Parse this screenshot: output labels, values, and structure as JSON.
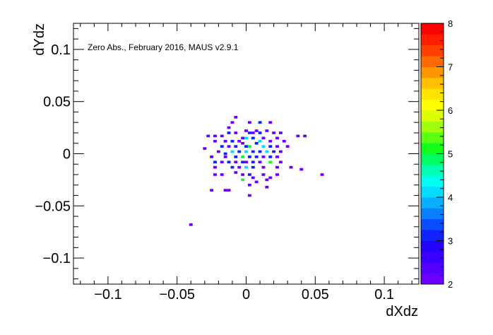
{
  "chart_data": {
    "type": "heatmap",
    "title": "",
    "annotation": "Zero Abs., February 2016, MAUS v2.9.1",
    "xlabel": "dXdz",
    "ylabel": "dYdz",
    "xlim": [
      -0.125,
      0.125
    ],
    "ylim": [
      -0.125,
      0.125
    ],
    "x_ticks": [
      -0.1,
      -0.05,
      0,
      0.05,
      0.1
    ],
    "x_tick_labels": [
      "−0.1",
      "−0.05",
      "0",
      "0.05",
      "0.1"
    ],
    "y_ticks": [
      -0.1,
      -0.05,
      0,
      0.05,
      0.1
    ],
    "y_tick_labels": [
      "−0.1",
      "−0.05",
      "0",
      "0.05",
      "0.1"
    ],
    "colorbar": {
      "min": 2,
      "max": 8,
      "ticks": [
        2,
        3,
        4,
        5,
        6,
        7,
        8
      ],
      "colors": [
        "#6b00ff",
        "#5200ff",
        "#3a00ff",
        "#2400ff",
        "#0f22ff",
        "#0b4cff",
        "#0a80ff",
        "#09b0ff",
        "#06dcff",
        "#00ffee",
        "#00ffb0",
        "#00ff60",
        "#11ff1a",
        "#5aff12",
        "#a0ff10",
        "#dcff08",
        "#ffff00",
        "#ffe400",
        "#ffc000",
        "#ff9500",
        "#ff6a00",
        "#ff4000",
        "#ff1e00",
        "#ff0000"
      ]
    },
    "bin_size": 0.0025,
    "cells": [
      [
        -0.0075,
        0.035,
        2
      ],
      [
        -0.01,
        0.03,
        2
      ],
      [
        -0.0125,
        0.025,
        2
      ],
      [
        0.0025,
        0.03,
        2
      ],
      [
        0.01,
        0.03,
        3
      ],
      [
        0.0175,
        0.03,
        2
      ],
      [
        -0.0275,
        0.017,
        2
      ],
      [
        -0.0225,
        0.017,
        2
      ],
      [
        -0.0175,
        0.017,
        2
      ],
      [
        -0.0125,
        0.02,
        3
      ],
      [
        -0.0075,
        0.02,
        2
      ],
      [
        0.0,
        0.022,
        2
      ],
      [
        0.0025,
        0.02,
        3
      ],
      [
        0.005,
        0.02,
        2
      ],
      [
        0.0075,
        0.022,
        2
      ],
      [
        0.01,
        0.02,
        3
      ],
      [
        0.015,
        0.022,
        2
      ],
      [
        0.02,
        0.02,
        2
      ],
      [
        0.025,
        0.02,
        2
      ],
      [
        0.0375,
        0.017,
        2
      ],
      [
        0.0425,
        0.017,
        2
      ],
      [
        -0.0225,
        0.012,
        2
      ],
      [
        -0.015,
        0.012,
        2
      ],
      [
        -0.01,
        0.012,
        3
      ],
      [
        -0.005,
        0.012,
        2
      ],
      [
        -0.0025,
        0.015,
        2
      ],
      [
        0.0,
        0.015,
        4
      ],
      [
        0.005,
        0.015,
        3
      ],
      [
        0.01,
        0.012,
        4
      ],
      [
        0.0125,
        0.015,
        2
      ],
      [
        0.0175,
        0.012,
        2
      ],
      [
        0.0225,
        0.015,
        2
      ],
      [
        0.0275,
        0.012,
        2
      ],
      [
        -0.0175,
        0.007,
        3
      ],
      [
        -0.0125,
        0.007,
        2
      ],
      [
        -0.0075,
        0.007,
        3
      ],
      [
        -0.0025,
        0.01,
        2
      ],
      [
        0.0,
        0.007,
        3
      ],
      [
        0.0025,
        0.007,
        5
      ],
      [
        0.0075,
        0.01,
        3
      ],
      [
        0.0125,
        0.007,
        4
      ],
      [
        0.0175,
        0.007,
        3
      ],
      [
        0.0225,
        0.007,
        2
      ],
      [
        0.03,
        0.007,
        2
      ],
      [
        -0.03,
        0.005,
        2
      ],
      [
        -0.02,
        0.002,
        2
      ],
      [
        -0.015,
        0.0,
        3
      ],
      [
        -0.01,
        0.002,
        4
      ],
      [
        -0.005,
        0.002,
        3
      ],
      [
        0.0,
        0.002,
        4
      ],
      [
        0.005,
        0.002,
        3
      ],
      [
        0.01,
        0.002,
        3
      ],
      [
        0.015,
        0.002,
        4
      ],
      [
        0.02,
        0.002,
        3
      ],
      [
        0.025,
        0.002,
        2
      ],
      [
        -0.025,
        -0.003,
        2
      ],
      [
        -0.015,
        -0.003,
        2
      ],
      [
        -0.0075,
        -0.003,
        3
      ],
      [
        -0.0025,
        -0.003,
        5
      ],
      [
        0.0025,
        -0.003,
        3
      ],
      [
        0.0075,
        -0.003,
        3
      ],
      [
        0.0125,
        -0.003,
        2
      ],
      [
        0.0175,
        -0.003,
        3
      ],
      [
        0.0225,
        -0.003,
        2
      ],
      [
        -0.0225,
        -0.008,
        3
      ],
      [
        -0.0175,
        -0.008,
        2
      ],
      [
        -0.0125,
        -0.008,
        3
      ],
      [
        -0.0075,
        -0.008,
        2
      ],
      [
        -0.0025,
        -0.008,
        3
      ],
      [
        0.0,
        -0.008,
        2
      ],
      [
        0.005,
        -0.008,
        3
      ],
      [
        0.01,
        -0.008,
        2
      ],
      [
        0.0175,
        -0.008,
        5
      ],
      [
        0.025,
        -0.008,
        2
      ],
      [
        -0.0225,
        -0.013,
        2
      ],
      [
        -0.01,
        -0.013,
        3
      ],
      [
        -0.005,
        -0.013,
        2
      ],
      [
        0.0,
        -0.013,
        4
      ],
      [
        0.005,
        -0.013,
        3
      ],
      [
        0.0125,
        -0.013,
        2
      ],
      [
        0.0225,
        -0.013,
        2
      ],
      [
        0.0325,
        -0.013,
        2
      ],
      [
        0.04,
        -0.015,
        2
      ],
      [
        0.055,
        -0.02,
        2
      ],
      [
        -0.0225,
        -0.02,
        2
      ],
      [
        -0.0175,
        -0.02,
        2
      ],
      [
        -0.0075,
        -0.018,
        2
      ],
      [
        -0.0025,
        -0.02,
        2
      ],
      [
        0.0025,
        -0.02,
        3
      ],
      [
        0.005,
        -0.023,
        2
      ],
      [
        0.0125,
        -0.02,
        2
      ],
      [
        0.0175,
        -0.023,
        2
      ],
      [
        0.0225,
        -0.02,
        2
      ],
      [
        -0.0025,
        -0.025,
        5
      ],
      [
        0.0075,
        -0.027,
        2
      ],
      [
        0.015,
        -0.025,
        2
      ],
      [
        -0.025,
        -0.035,
        2
      ],
      [
        -0.015,
        -0.035,
        2
      ],
      [
        -0.0125,
        -0.035,
        2
      ],
      [
        0.0025,
        -0.03,
        2
      ],
      [
        0.015,
        -0.032,
        2
      ],
      [
        0.0025,
        -0.04,
        2
      ],
      [
        -0.04,
        -0.068,
        2
      ]
    ]
  }
}
